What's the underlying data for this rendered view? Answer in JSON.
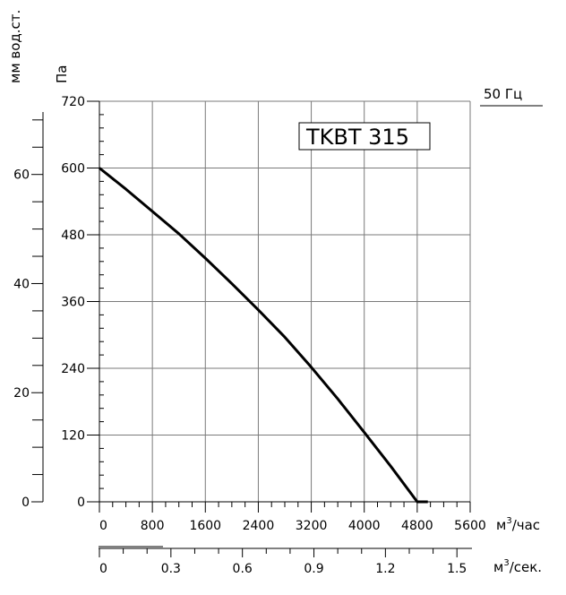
{
  "chart_data": {
    "type": "line",
    "title": "TKBT 315",
    "frequency_label": "50 Гц",
    "series": [
      {
        "x": [
          0,
          400,
          800,
          1200,
          1600,
          2000,
          2400,
          2800,
          3200,
          3600,
          4000,
          4400,
          4800,
          4960
        ],
        "y": [
          600,
          562,
          522,
          482,
          438,
          392,
          345,
          296,
          242,
          185,
          125,
          64,
          0,
          0
        ]
      }
    ],
    "x_axis": {
      "ticks": [
        "0",
        "800",
        "1600",
        "2400",
        "3200",
        "4000",
        "4800",
        "5600"
      ],
      "range": [
        0,
        5600
      ],
      "unit_base": "м",
      "unit_sup": "3",
      "unit_suffix": "/час"
    },
    "x2_axis": {
      "ticks": [
        "0",
        "0.3",
        "0.6",
        "0.9",
        "1.2",
        "1.5"
      ],
      "unit_base": "м",
      "unit_sup": "3",
      "unit_suffix": "/сек."
    },
    "y_axis": {
      "label": "Па",
      "ticks": [
        "0",
        "120",
        "240",
        "360",
        "480",
        "600",
        "720"
      ],
      "range": [
        0,
        720
      ]
    },
    "y2_axis": {
      "label": "мм вод.ст.",
      "ticks": [
        "0",
        "20",
        "40",
        "60"
      ]
    },
    "grid": true
  }
}
